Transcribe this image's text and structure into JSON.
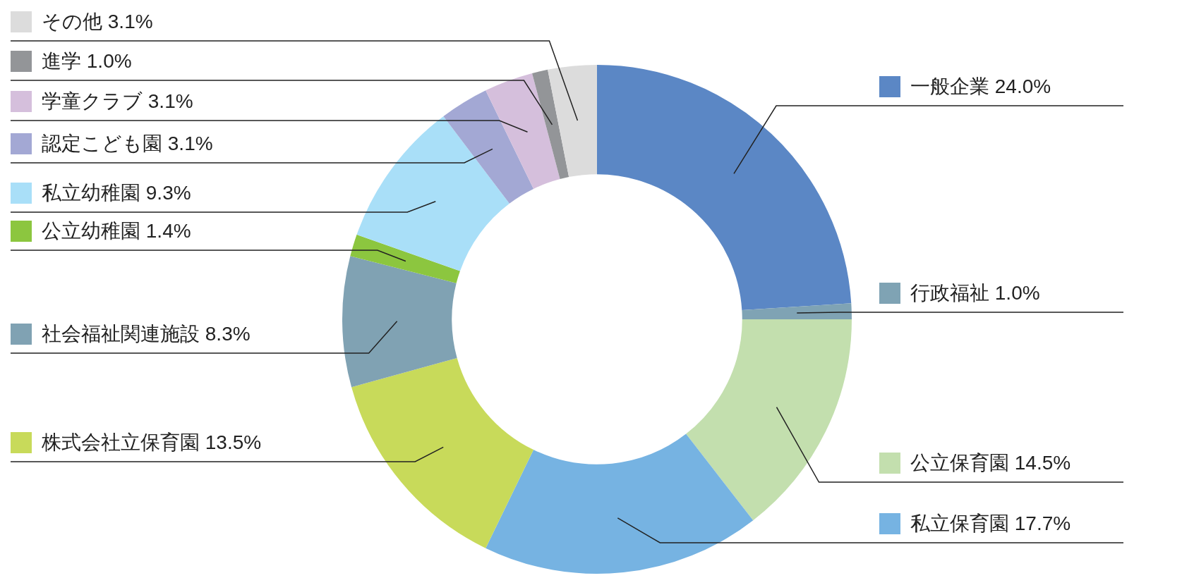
{
  "chart_data": {
    "type": "donut",
    "categories": [
      "一般企業",
      "行政福祉",
      "公立保育園",
      "私立保育園",
      "株式会社立保育園",
      "社会福祉関連施設",
      "公立幼稚園",
      "私立幼稚園",
      "認定こども園",
      "学童クラブ",
      "進学",
      "その他"
    ],
    "values": [
      24.0,
      1.0,
      14.5,
      17.7,
      13.5,
      8.3,
      1.4,
      9.3,
      3.1,
      3.1,
      1.0,
      3.1
    ],
    "value_labels": [
      "24.0%",
      "1.0%",
      "14.5%",
      "17.7%",
      "13.5%",
      "8.3%",
      "1.4%",
      "9.3%",
      "3.1%",
      "3.1%",
      "1.0%",
      "3.1%"
    ],
    "colors": [
      "#5b87c5",
      "#7fa3b4",
      "#c3dfae",
      "#76b3e2",
      "#c8da5a",
      "#80a2b3",
      "#8cc63f",
      "#a9dff8",
      "#a3a8d4",
      "#d5bfdc",
      "#939598",
      "#dcdcdc"
    ],
    "legend": "left"
  }
}
